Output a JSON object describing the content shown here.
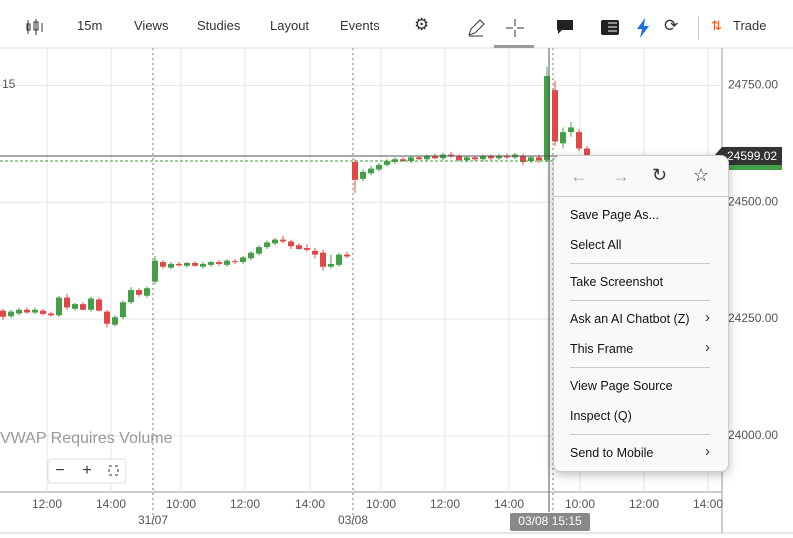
{
  "toolbar": {
    "interval": "15m",
    "menus": [
      "Views",
      "Studies",
      "Layout",
      "Events"
    ],
    "trade": "Trade"
  },
  "chart": {
    "type": "candlestick",
    "ylim": [
      23880,
      24830
    ],
    "yticks": [
      {
        "value": 24750,
        "label": "24750.00"
      },
      {
        "value": 24500,
        "label": "24500.00"
      },
      {
        "value": 24250,
        "label": "24250.00"
      },
      {
        "value": 24000,
        "label": "24000.00"
      }
    ],
    "partial_label": "15",
    "last_price": 24599.02,
    "xticks": [
      "12:00",
      "14:00",
      "10:00",
      "12:00",
      "14:00",
      "10:00",
      "12:00",
      "14:00",
      "10:00",
      "12:00",
      "14:00"
    ],
    "dates": [
      "31/07",
      "03/08"
    ],
    "crosshair_time": "03/08 15:15",
    "notice": "VWAP Requires Volume",
    "candles": [
      [
        24268,
        24272,
        24248,
        24255
      ],
      [
        24256,
        24270,
        24252,
        24266
      ],
      [
        24262,
        24274,
        24258,
        24270
      ],
      [
        24270,
        24275,
        24262,
        24264
      ],
      [
        24264,
        24275,
        24260,
        24270
      ],
      [
        24268,
        24272,
        24258,
        24261
      ],
      [
        24262,
        24266,
        24255,
        24258
      ],
      [
        24258,
        24300,
        24255,
        24296
      ],
      [
        24296,
        24304,
        24270,
        24275
      ],
      [
        24272,
        24285,
        24268,
        24282
      ],
      [
        24282,
        24286,
        24268,
        24270
      ],
      [
        24270,
        24298,
        24266,
        24294
      ],
      [
        24292,
        24296,
        24266,
        24268
      ],
      [
        24266,
        24270,
        24232,
        24240
      ],
      [
        24238,
        24258,
        24234,
        24254
      ],
      [
        24254,
        24290,
        24250,
        24286
      ],
      [
        24286,
        24318,
        24282,
        24312
      ],
      [
        24312,
        24316,
        24298,
        24302
      ],
      [
        24300,
        24320,
        24296,
        24316
      ],
      [
        24330,
        24385,
        24325,
        24375
      ],
      [
        24372,
        24376,
        24358,
        24362
      ],
      [
        24360,
        24372,
        24356,
        24368
      ],
      [
        24368,
        24372,
        24362,
        24365
      ],
      [
        24364,
        24372,
        24360,
        24370
      ],
      [
        24370,
        24374,
        24362,
        24364
      ],
      [
        24362,
        24372,
        24358,
        24368
      ],
      [
        24366,
        24374,
        24362,
        24372
      ],
      [
        24372,
        24376,
        24364,
        24368
      ],
      [
        24366,
        24378,
        24362,
        24375
      ],
      [
        24374,
        24378,
        24368,
        24372
      ],
      [
        24372,
        24385,
        24368,
        24382
      ],
      [
        24380,
        24395,
        24376,
        24392
      ],
      [
        24390,
        24408,
        24386,
        24404
      ],
      [
        24404,
        24418,
        24400,
        24414
      ],
      [
        24412,
        24424,
        24408,
        24420
      ],
      [
        24420,
        24428,
        24412,
        24416
      ],
      [
        24416,
        24420,
        24400,
        24406
      ],
      [
        24408,
        24412,
        24398,
        24400
      ],
      [
        24402,
        24410,
        24394,
        24398
      ],
      [
        24396,
        24402,
        24380,
        24388
      ],
      [
        24392,
        24398,
        24354,
        24362
      ],
      [
        24362,
        24388,
        24358,
        24368
      ],
      [
        24366,
        24392,
        24362,
        24388
      ],
      [
        24388,
        24394,
        24380,
        24384
      ],
      [
        24586,
        24592,
        24520,
        24548
      ],
      [
        24550,
        24570,
        24545,
        24565
      ],
      [
        24562,
        24578,
        24558,
        24572
      ],
      [
        24570,
        24584,
        24566,
        24580
      ],
      [
        24580,
        24592,
        24576,
        24588
      ],
      [
        24586,
        24596,
        24582,
        24592
      ],
      [
        24592,
        24596,
        24586,
        24588
      ],
      [
        24588,
        24600,
        24584,
        24596
      ],
      [
        24596,
        24600,
        24590,
        24592
      ],
      [
        24592,
        24602,
        24588,
        24598
      ],
      [
        24598,
        24604,
        24592,
        24594
      ],
      [
        24594,
        24606,
        24590,
        24602
      ],
      [
        24602,
        24608,
        24594,
        24598
      ],
      [
        24598,
        24602,
        24588,
        24590
      ],
      [
        24590,
        24600,
        24586,
        24596
      ],
      [
        24596,
        24600,
        24588,
        24592
      ],
      [
        24592,
        24602,
        24588,
        24598
      ],
      [
        24598,
        24602,
        24590,
        24594
      ],
      [
        24594,
        24604,
        24590,
        24600
      ],
      [
        24600,
        24604,
        24592,
        24596
      ],
      [
        24596,
        24606,
        24592,
        24602
      ],
      [
        24600,
        24604,
        24580,
        24586
      ],
      [
        24588,
        24600,
        24584,
        24596
      ],
      [
        24596,
        24602,
        24584,
        24590
      ],
      [
        24590,
        24790,
        24586,
        24770
      ],
      [
        24740,
        24760,
        24620,
        24630
      ],
      [
        24626,
        24660,
        24615,
        24650
      ],
      [
        24650,
        24672,
        24640,
        24660
      ],
      [
        24650,
        24656,
        24610,
        24615
      ],
      [
        24615,
        24620,
        24596,
        24600
      ]
    ]
  },
  "context_menu": {
    "items": [
      "Save Page As...",
      "Select All",
      "Take Screenshot",
      "Ask an AI Chatbot (Z)",
      "This Frame",
      "View Page Source",
      "Inspect (Q)",
      "Send to Mobile"
    ]
  }
}
